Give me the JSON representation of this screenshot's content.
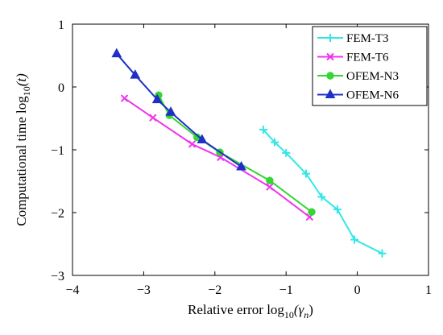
{
  "chart_data": {
    "type": "line",
    "xlim": [
      -4,
      1
    ],
    "ylim": [
      -3,
      1
    ],
    "xticks": [
      "−4",
      "−3",
      "−2",
      "−1",
      "0",
      "1"
    ],
    "yticks": [
      "1",
      "0",
      "−1",
      "−2",
      "−3"
    ],
    "xtick_values": [
      -4,
      -3,
      -2,
      -1,
      0,
      1
    ],
    "ytick_values": [
      1,
      0,
      -1,
      -2,
      -3
    ],
    "xlabel": {
      "prefix": "Relative error log",
      "sub": "10",
      "arg": "(γ",
      "argsub": "n",
      "suffix": ")"
    },
    "ylabel": {
      "prefix": "Computational time log",
      "sub": "10",
      "arg": "(t)"
    },
    "grid": false,
    "legend_position": "top-right",
    "series": [
      {
        "name": "FEM-T3",
        "color": "#33e6e6",
        "marker": "plus",
        "x": [
          -1.32,
          -1.16,
          -1.0,
          -0.72,
          -0.5,
          -0.28,
          -0.04,
          0.35
        ],
        "y": [
          -0.68,
          -0.88,
          -1.05,
          -1.38,
          -1.75,
          -1.95,
          -2.43,
          -2.65
        ]
      },
      {
        "name": "FEM-T6",
        "color": "#ee33ee",
        "marker": "cross",
        "x": [
          -3.27,
          -2.87,
          -2.32,
          -1.92,
          -1.23,
          -0.67
        ],
        "y": [
          -0.18,
          -0.49,
          -0.91,
          -1.12,
          -1.59,
          -2.07
        ]
      },
      {
        "name": "OFEM-N3",
        "color": "#33d633",
        "marker": "circle",
        "x": [
          -2.79,
          -2.64,
          -2.25,
          -1.93,
          -1.23,
          -0.64
        ],
        "y": [
          -0.13,
          -0.45,
          -0.8,
          -1.04,
          -1.49,
          -1.99
        ]
      },
      {
        "name": "OFEM-N6",
        "color": "#1f2fc8",
        "marker": "triangle",
        "x": [
          -3.38,
          -3.12,
          -2.81,
          -2.62,
          -2.18,
          -1.63
        ],
        "y": [
          0.53,
          0.19,
          -0.2,
          -0.4,
          -0.84,
          -1.27
        ]
      }
    ]
  }
}
